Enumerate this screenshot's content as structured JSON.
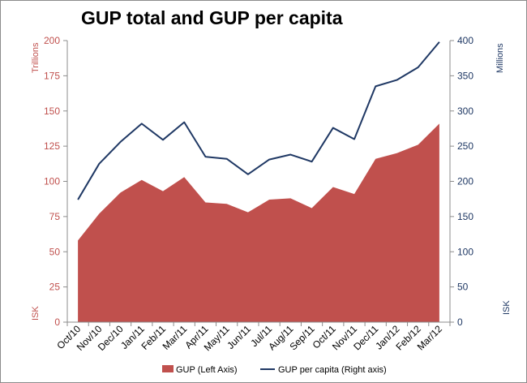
{
  "chart_data": {
    "type": "area",
    "title": "GUP total and GUP per capita",
    "categories": [
      "Oct/10",
      "Nov/10",
      "Dec/10",
      "Jan/11",
      "Feb/11",
      "Mar/11",
      "Apr/11",
      "May/11",
      "Jun/11",
      "Jul/11",
      "Aug/11",
      "Sep/11",
      "Oct/11",
      "Nov/11",
      "Dec/11",
      "Jan/12",
      "Feb/12",
      "Mar/12"
    ],
    "left_axis": {
      "unit_top": "Trillions",
      "unit_bottom": "ISK",
      "ylim": [
        0,
        200
      ],
      "ticks": [
        0,
        25,
        50,
        75,
        100,
        125,
        150,
        175,
        200
      ],
      "color": "#c0504d"
    },
    "right_axis": {
      "unit_top": "Millions",
      "unit_bottom": "ISK",
      "ylim": [
        0,
        400
      ],
      "ticks": [
        0,
        50,
        100,
        150,
        200,
        250,
        300,
        350,
        400
      ],
      "color": "#1f3864"
    },
    "series": [
      {
        "name": "GUP (Left Axis)",
        "type": "area",
        "axis": "left",
        "color": "#c0504d",
        "values": [
          58,
          77,
          92,
          101,
          93,
          103,
          85,
          84,
          78,
          87,
          88,
          81,
          96,
          91,
          116,
          120,
          126,
          141
        ]
      },
      {
        "name": "GUP per capita (Right axis)",
        "type": "line",
        "axis": "right",
        "color": "#1f3864",
        "values": [
          174,
          225,
          256,
          282,
          259,
          284,
          235,
          232,
          210,
          231,
          238,
          228,
          276,
          260,
          335,
          344,
          362,
          398
        ]
      }
    ],
    "grid": false,
    "legend_position": "bottom"
  }
}
